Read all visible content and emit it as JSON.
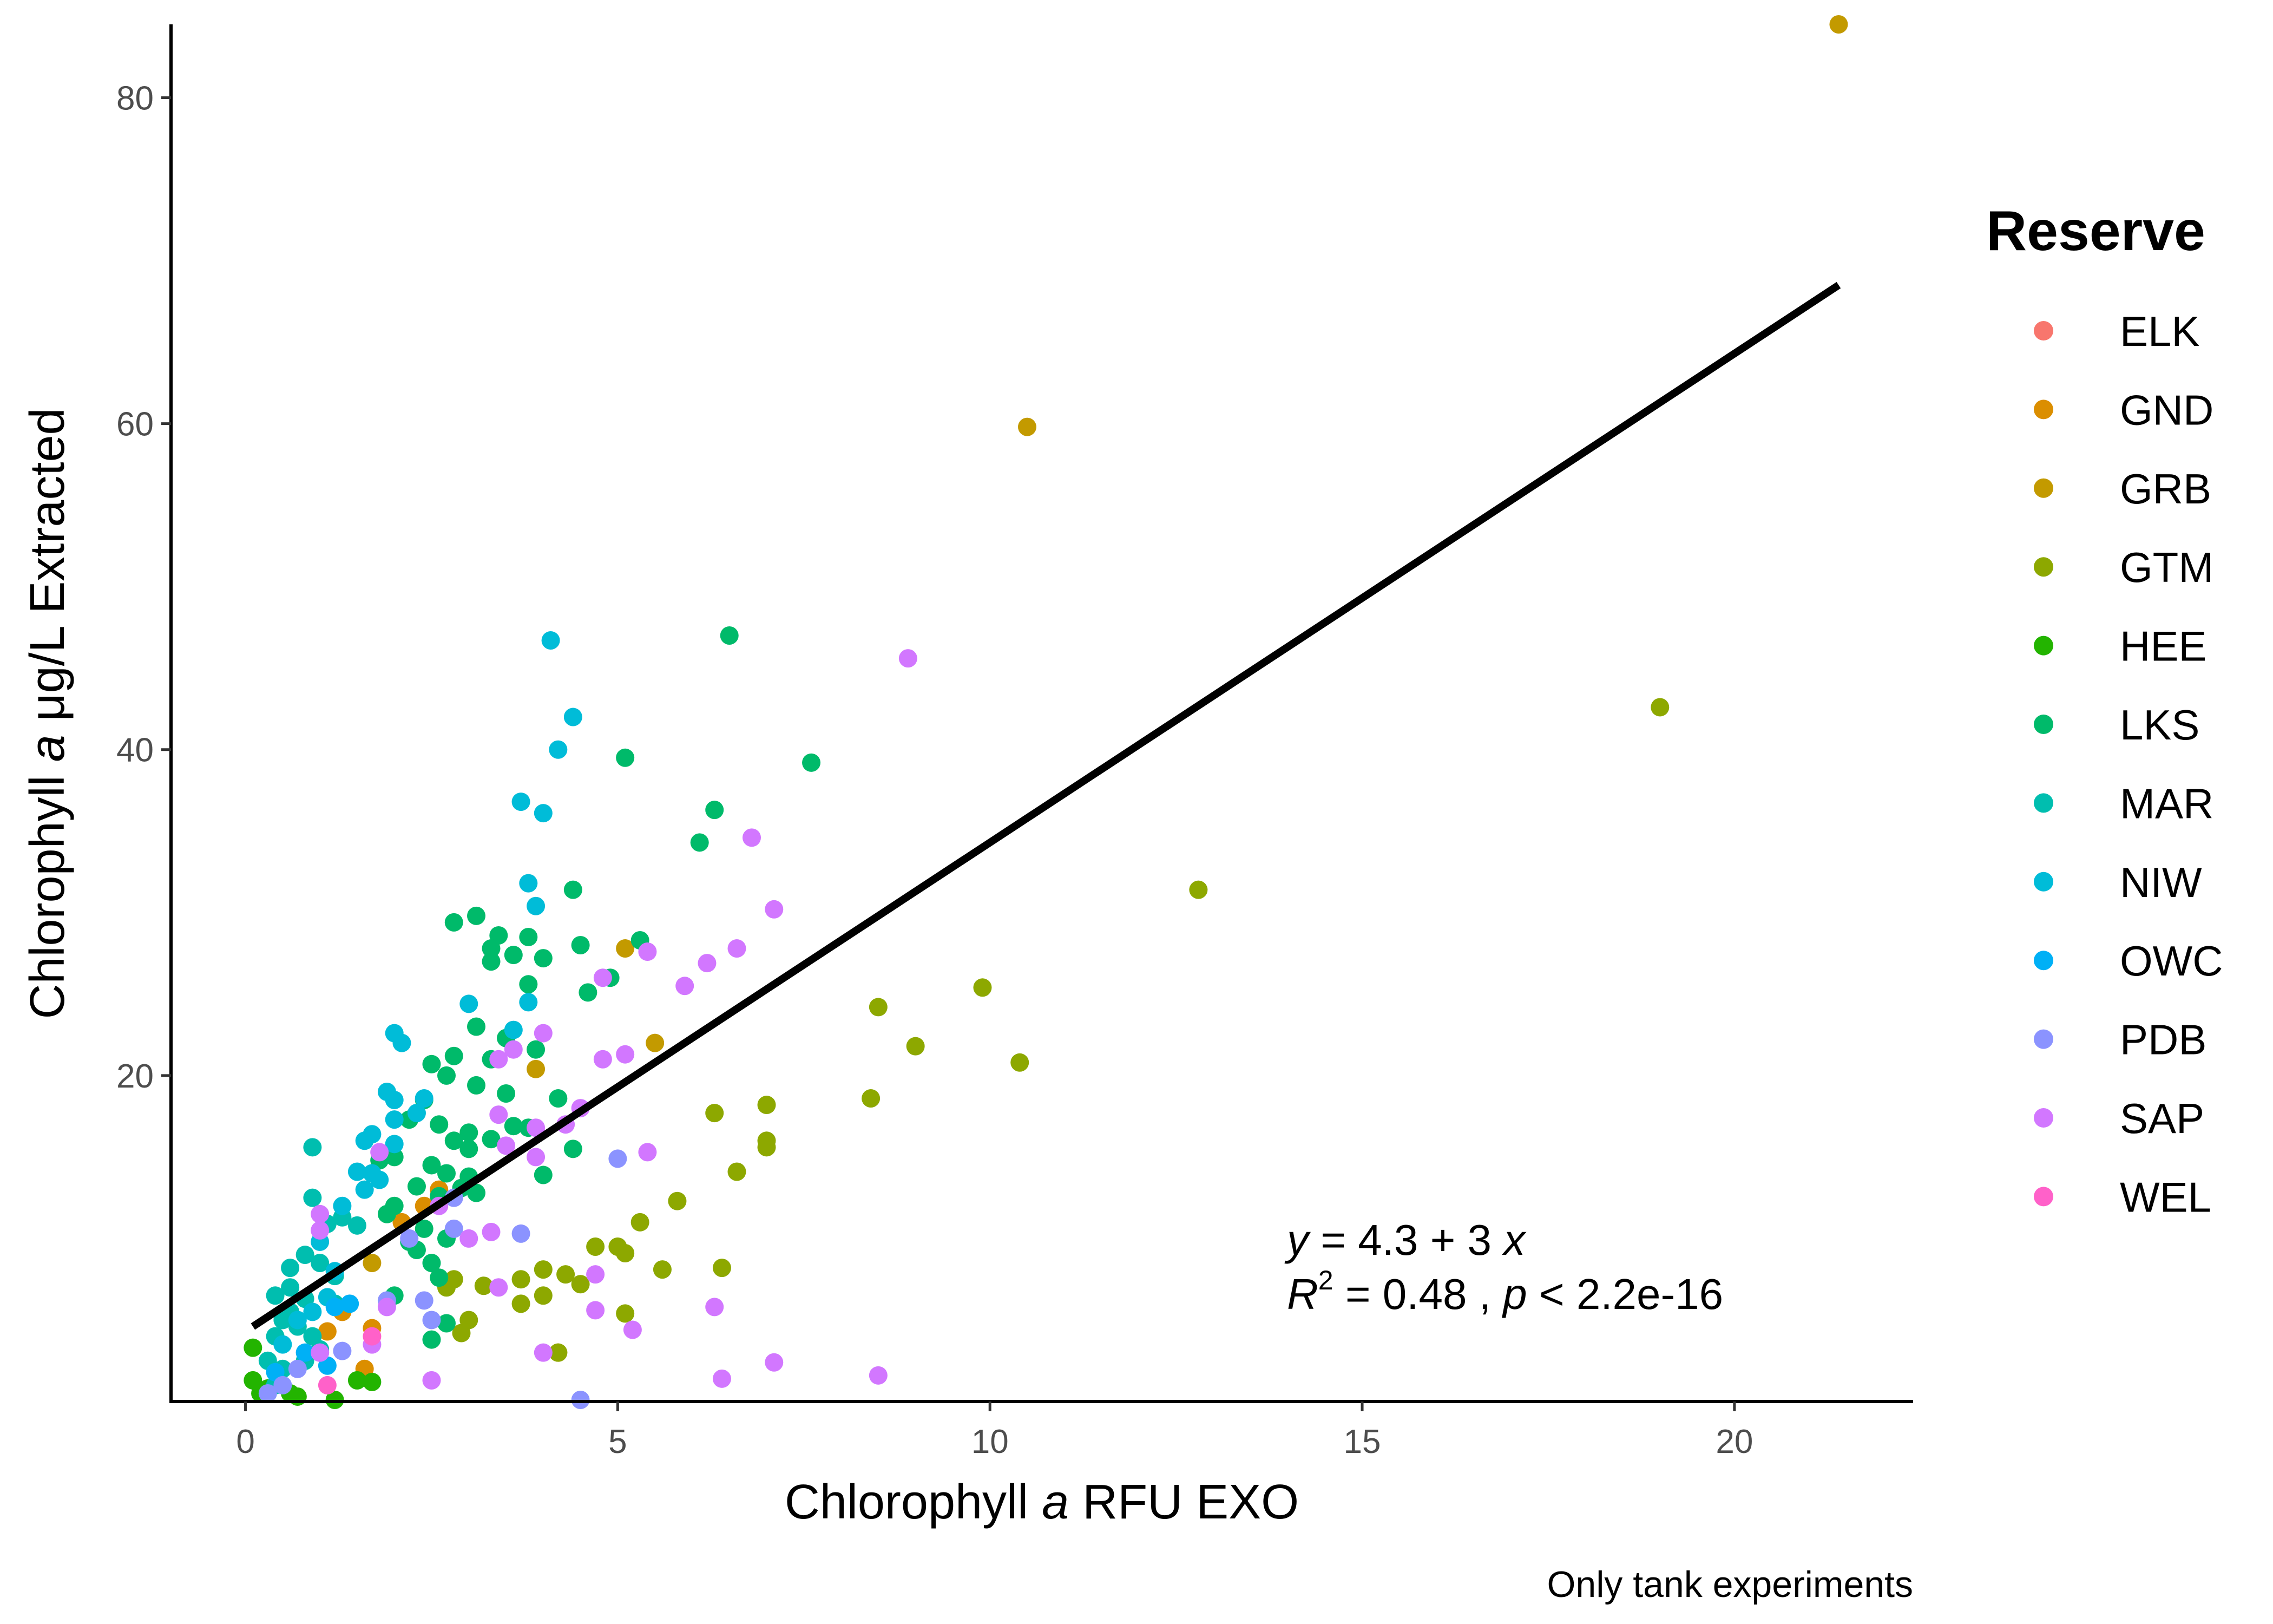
{
  "chart_data": {
    "type": "scatter",
    "xlabel": [
      "Chlorophyll ",
      "a",
      " RFU EXO"
    ],
    "ylabel": [
      "Chlorophyll ",
      "a",
      " μg/L Extracted"
    ],
    "caption": "Only tank experiments",
    "xlim": [
      -1,
      22.4
    ],
    "ylim": [
      0,
      84.5
    ],
    "x_ticks": [
      0,
      5,
      10,
      15,
      20
    ],
    "y_ticks": [
      20,
      40,
      60,
      80
    ],
    "grid": false,
    "legend": {
      "title": "Reserve",
      "placement": "right",
      "entries": [
        {
          "name": "ELK",
          "color": "#F8766D"
        },
        {
          "name": "GND",
          "color": "#DB8E00"
        },
        {
          "name": "GRB",
          "color": "#C39A00"
        },
        {
          "name": "GTM",
          "color": "#8DA800"
        },
        {
          "name": "HEE",
          "color": "#23B400"
        },
        {
          "name": "LKS",
          "color": "#00BA6A"
        },
        {
          "name": "MAR",
          "color": "#00BEAF"
        },
        {
          "name": "NIW",
          "color": "#00BCD8"
        },
        {
          "name": "OWC",
          "color": "#00B0F6"
        },
        {
          "name": "PDB",
          "color": "#8B93FF"
        },
        {
          "name": "SAP",
          "color": "#D277FF"
        },
        {
          "name": "WEL",
          "color": "#FF61C9"
        }
      ]
    },
    "regression": {
      "x_range": [
        0.1,
        21.4
      ],
      "intercept": 4.3,
      "slope": 3,
      "equation": [
        "y",
        " = 4.3 + 3 ",
        "x"
      ],
      "stats": [
        "R",
        "2",
        " = 0.48 ,  ",
        "p",
        " < 2.2e-16"
      ]
    },
    "series": [
      {
        "name": "GRB",
        "points": [
          [
            21.4,
            84.5
          ],
          [
            10.5,
            59.8
          ],
          [
            5.1,
            27.8
          ],
          [
            5.5,
            22.0
          ],
          [
            3.9,
            20.4
          ],
          [
            4.2,
            3.0
          ],
          [
            1.7,
            8.5
          ]
        ]
      },
      {
        "name": "GND",
        "points": [
          [
            2.4,
            12.0
          ],
          [
            2.1,
            11.0
          ],
          [
            1.7,
            4.5
          ],
          [
            1.3,
            5.5
          ],
          [
            1.1,
            4.3
          ],
          [
            2.6,
            13.0
          ],
          [
            1.6,
            2.0
          ]
        ]
      },
      {
        "name": "GTM",
        "points": [
          [
            19.0,
            42.6
          ],
          [
            12.8,
            31.4
          ],
          [
            9.9,
            25.4
          ],
          [
            10.4,
            20.8
          ],
          [
            8.5,
            24.2
          ],
          [
            9.0,
            21.8
          ],
          [
            8.4,
            18.6
          ],
          [
            7.0,
            18.2
          ],
          [
            7.0,
            16.0
          ],
          [
            7.0,
            15.6
          ],
          [
            6.3,
            17.7
          ],
          [
            6.6,
            14.1
          ],
          [
            5.8,
            12.3
          ],
          [
            5.3,
            11.0
          ],
          [
            4.7,
            9.5
          ],
          [
            5.0,
            9.5
          ],
          [
            5.1,
            9.1
          ],
          [
            5.6,
            8.1
          ],
          [
            6.4,
            8.2
          ],
          [
            4.0,
            8.1
          ],
          [
            4.3,
            7.8
          ],
          [
            4.5,
            7.2
          ],
          [
            3.7,
            7.5
          ],
          [
            3.0,
            5.0
          ],
          [
            2.9,
            4.2
          ],
          [
            3.7,
            6.0
          ],
          [
            4.0,
            6.5
          ],
          [
            5.1,
            5.4
          ],
          [
            4.2,
            3.0
          ],
          [
            3.2,
            7.1
          ],
          [
            2.8,
            7.5
          ],
          [
            2.7,
            7.0
          ]
        ]
      },
      {
        "name": "HEE",
        "points": [
          [
            0.1,
            3.3
          ],
          [
            0.1,
            1.3
          ],
          [
            0.2,
            0.5
          ],
          [
            0.6,
            0.5
          ],
          [
            1.2,
            0.1
          ],
          [
            1.5,
            1.3
          ],
          [
            1.7,
            1.2
          ],
          [
            0.7,
            0.3
          ],
          [
            0.3,
            0.8
          ]
        ]
      },
      {
        "name": "LKS",
        "points": [
          [
            6.5,
            47.0
          ],
          [
            5.1,
            39.5
          ],
          [
            7.6,
            39.2
          ],
          [
            6.3,
            36.3
          ],
          [
            6.1,
            34.3
          ],
          [
            4.4,
            31.4
          ],
          [
            3.1,
            29.8
          ],
          [
            2.8,
            29.4
          ],
          [
            3.4,
            28.6
          ],
          [
            3.8,
            28.5
          ],
          [
            3.3,
            27.8
          ],
          [
            4.5,
            28.0
          ],
          [
            5.3,
            28.3
          ],
          [
            3.6,
            27.4
          ],
          [
            4.0,
            27.2
          ],
          [
            3.3,
            27.0
          ],
          [
            3.8,
            25.6
          ],
          [
            4.6,
            25.1
          ],
          [
            4.9,
            26.0
          ],
          [
            3.1,
            23.0
          ],
          [
            3.5,
            22.3
          ],
          [
            3.9,
            21.6
          ],
          [
            2.5,
            20.7
          ],
          [
            2.8,
            21.2
          ],
          [
            3.3,
            21.0
          ],
          [
            2.7,
            20.0
          ],
          [
            3.1,
            19.4
          ],
          [
            3.5,
            18.9
          ],
          [
            4.2,
            18.6
          ],
          [
            2.4,
            18.5
          ],
          [
            2.2,
            17.3
          ],
          [
            2.6,
            17.0
          ],
          [
            3.0,
            16.5
          ],
          [
            3.3,
            16.1
          ],
          [
            3.6,
            16.9
          ],
          [
            3.8,
            16.8
          ],
          [
            2.8,
            16.0
          ],
          [
            3.0,
            15.5
          ],
          [
            4.4,
            15.5
          ],
          [
            2.0,
            15.0
          ],
          [
            2.5,
            14.5
          ],
          [
            2.7,
            14.0
          ],
          [
            3.0,
            13.8
          ],
          [
            4.0,
            13.9
          ],
          [
            2.3,
            13.2
          ],
          [
            2.6,
            12.6
          ],
          [
            2.0,
            12.0
          ],
          [
            1.8,
            14.8
          ],
          [
            2.4,
            10.6
          ],
          [
            2.7,
            10.0
          ],
          [
            2.3,
            9.3
          ],
          [
            2.5,
            8.5
          ],
          [
            2.6,
            7.6
          ],
          [
            2.7,
            4.8
          ],
          [
            2.5,
            3.8
          ],
          [
            2.0,
            6.5
          ],
          [
            2.9,
            13.1
          ],
          [
            3.1,
            12.8
          ],
          [
            1.9,
            11.5
          ],
          [
            2.2,
            9.8
          ]
        ]
      },
      {
        "name": "MAR",
        "points": [
          [
            0.9,
            15.6
          ],
          [
            0.9,
            12.5
          ],
          [
            1.3,
            11.3
          ],
          [
            1.1,
            10.9
          ],
          [
            1.5,
            10.8
          ],
          [
            0.8,
            9.0
          ],
          [
            0.6,
            8.2
          ],
          [
            1.0,
            8.5
          ],
          [
            0.6,
            7.0
          ],
          [
            1.2,
            7.7
          ],
          [
            0.4,
            6.5
          ],
          [
            0.8,
            6.3
          ],
          [
            1.2,
            6.0
          ],
          [
            0.6,
            5.5
          ],
          [
            0.5,
            5.0
          ],
          [
            0.7,
            4.6
          ],
          [
            0.4,
            4.0
          ],
          [
            0.9,
            4.0
          ],
          [
            0.3,
            2.5
          ],
          [
            0.5,
            2.0
          ],
          [
            1.0,
            3.2
          ],
          [
            0.4,
            1.0
          ],
          [
            0.8,
            2.5
          ]
        ]
      },
      {
        "name": "NIW",
        "points": [
          [
            4.1,
            46.7
          ],
          [
            4.4,
            42.0
          ],
          [
            4.2,
            40.0
          ],
          [
            3.7,
            36.8
          ],
          [
            4.0,
            36.1
          ],
          [
            3.8,
            31.8
          ],
          [
            3.9,
            30.4
          ],
          [
            3.0,
            24.4
          ],
          [
            3.8,
            24.5
          ],
          [
            2.0,
            22.6
          ],
          [
            3.6,
            22.8
          ],
          [
            2.1,
            22.0
          ],
          [
            1.9,
            19.0
          ],
          [
            2.0,
            18.5
          ],
          [
            2.4,
            18.6
          ],
          [
            1.7,
            16.4
          ],
          [
            2.0,
            17.3
          ],
          [
            2.3,
            17.7
          ],
          [
            1.6,
            16.0
          ],
          [
            2.0,
            15.8
          ],
          [
            1.5,
            14.1
          ],
          [
            1.7,
            14.0
          ],
          [
            1.8,
            13.6
          ],
          [
            1.6,
            13.0
          ],
          [
            1.3,
            12.0
          ],
          [
            1.0,
            9.8
          ],
          [
            1.2,
            8.0
          ],
          [
            1.1,
            6.4
          ],
          [
            0.7,
            5.0
          ],
          [
            0.9,
            5.5
          ],
          [
            0.5,
            3.5
          ]
        ]
      },
      {
        "name": "OWC",
        "points": [
          [
            1.2,
            5.8
          ],
          [
            1.4,
            6.0
          ],
          [
            0.8,
            3.0
          ],
          [
            1.1,
            2.2
          ],
          [
            0.4,
            1.8
          ]
        ]
      },
      {
        "name": "PDB",
        "points": [
          [
            5.0,
            14.9
          ],
          [
            3.7,
            10.3
          ],
          [
            2.2,
            10.0
          ],
          [
            2.8,
            10.6
          ],
          [
            2.4,
            6.2
          ],
          [
            2.5,
            5.0
          ],
          [
            1.9,
            6.2
          ],
          [
            1.3,
            3.1
          ],
          [
            1.0,
            3.0
          ],
          [
            0.7,
            2.0
          ],
          [
            0.5,
            1.0
          ],
          [
            0.3,
            0.5
          ],
          [
            4.5,
            0.1
          ],
          [
            2.8,
            12.5
          ]
        ]
      },
      {
        "name": "SAP",
        "points": [
          [
            8.9,
            45.6
          ],
          [
            6.8,
            34.6
          ],
          [
            7.1,
            30.2
          ],
          [
            6.6,
            27.8
          ],
          [
            6.2,
            26.9
          ],
          [
            5.4,
            27.6
          ],
          [
            5.9,
            25.5
          ],
          [
            4.8,
            26.0
          ],
          [
            4.0,
            22.6
          ],
          [
            3.6,
            21.6
          ],
          [
            3.4,
            21.0
          ],
          [
            5.1,
            21.3
          ],
          [
            4.8,
            21.0
          ],
          [
            3.4,
            17.6
          ],
          [
            4.5,
            18.0
          ],
          [
            3.9,
            16.8
          ],
          [
            4.3,
            17.0
          ],
          [
            3.5,
            15.7
          ],
          [
            3.9,
            15.0
          ],
          [
            5.4,
            15.3
          ],
          [
            3.3,
            10.4
          ],
          [
            3.0,
            10.0
          ],
          [
            4.7,
            7.8
          ],
          [
            3.4,
            7.0
          ],
          [
            4.7,
            5.6
          ],
          [
            5.2,
            4.4
          ],
          [
            6.3,
            5.8
          ],
          [
            4.0,
            3.0
          ],
          [
            7.1,
            2.4
          ],
          [
            8.5,
            1.6
          ],
          [
            6.4,
            1.4
          ],
          [
            2.5,
            1.3
          ],
          [
            1.7,
            3.5
          ],
          [
            1.0,
            11.5
          ],
          [
            1.0,
            10.5
          ],
          [
            1.0,
            3.0
          ],
          [
            1.8,
            15.3
          ],
          [
            2.6,
            12.0
          ],
          [
            1.9,
            5.8
          ]
        ]
      },
      {
        "name": "WEL",
        "points": [
          [
            1.7,
            4.0
          ],
          [
            1.1,
            1.0
          ]
        ]
      }
    ]
  }
}
